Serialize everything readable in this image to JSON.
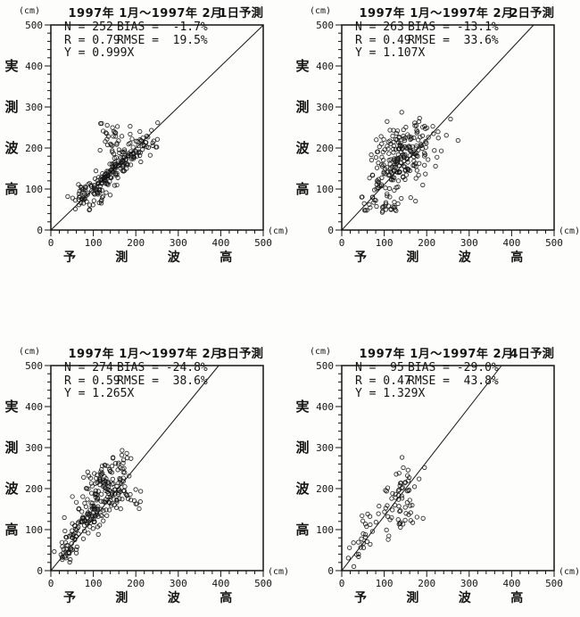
{
  "page": {
    "background": "#fdfdfc",
    "ink": "#141414",
    "description_period": "1997年 1月～1997年 2月"
  },
  "axes": {
    "xlabel": "予測波高",
    "xlabel_chars": [
      "予",
      "測",
      "波",
      "高"
    ],
    "ylabel": "実測波高",
    "ylabel_chars": [
      "実",
      "測",
      "波",
      "高"
    ],
    "unit": "(cm)",
    "major_ticks": [
      0,
      100,
      200,
      300,
      400,
      500
    ],
    "minor_step": 20,
    "xlim": [
      0,
      500
    ],
    "ylim": [
      0,
      500
    ]
  },
  "plots": [
    {
      "title": "1997年 1月～1997年 2月",
      "forecast_label": "1日予測",
      "stats_left": [
        "N = 252",
        "R = 0.79",
        "Y = 0.999X"
      ],
      "stats_right": [
        "BIAS =  -1.7%",
        "RMSE =  19.5%"
      ]
    },
    {
      "title": "1997年 1月～1997年 2月",
      "forecast_label": "2日予測",
      "stats_left": [
        "N = 263",
        "R = 0.49",
        "Y = 1.107X"
      ],
      "stats_right": [
        "BIAS = -13.1%",
        "RMSE =  33.6%"
      ]
    },
    {
      "title": "1997年 1月～1997年 2月",
      "forecast_label": "3日予測",
      "stats_left": [
        "N = 274",
        "R = 0.59",
        "Y = 1.265X"
      ],
      "stats_right": [
        "BIAS = -24.8%",
        "RMSE =  38.6%"
      ]
    },
    {
      "title": "1997年 1月～1997年 2月",
      "forecast_label": "4日予測",
      "stats_left": [
        "N =  95",
        "R = 0.47",
        "Y = 1.329X"
      ],
      "stats_right": [
        "BIAS = -29.0%",
        "RMSE =  43.8%"
      ]
    }
  ],
  "chart_data": [
    {
      "type": "scatter",
      "title": "1997年 1月～1997年 2月",
      "forecast": "1日予測",
      "xlabel": "予測波高 (cm)",
      "ylabel": "実測波高 (cm)",
      "xlim": [
        0,
        500
      ],
      "ylim": [
        0,
        500
      ],
      "grid": false,
      "marker": "open-circle",
      "regression_slope": 0.999,
      "stats": {
        "N": 252,
        "R": 0.79,
        "regression": "Y = 0.999X",
        "BIAS_pct": -1.7,
        "RMSE_pct": 19.5
      },
      "point_clusters": [
        {
          "n": 140,
          "cx": 135,
          "cy": 133,
          "sx": 38,
          "sy": 15,
          "k": 1.0
        },
        {
          "n": 45,
          "cx": 190,
          "cy": 183,
          "sx": 28,
          "sy": 22,
          "k": 0.9
        },
        {
          "n": 28,
          "cx": 143,
          "cy": 222,
          "sx": 11,
          "sy": 20,
          "k": 0.0
        },
        {
          "n": 20,
          "cx": 80,
          "cy": 100,
          "sx": 17,
          "sy": 13,
          "k": 0.7
        },
        {
          "n": 12,
          "cx": 115,
          "cy": 75,
          "sx": 18,
          "sy": 12,
          "k": 0.3
        },
        {
          "n": 7,
          "cx": 235,
          "cy": 205,
          "sx": 14,
          "sy": 18,
          "k": 0.5
        }
      ]
    },
    {
      "type": "scatter",
      "title": "1997年 1月～1997年 2月",
      "forecast": "2日予測",
      "xlabel": "予測波高 (cm)",
      "ylabel": "実測波高 (cm)",
      "xlim": [
        0,
        500
      ],
      "ylim": [
        0,
        500
      ],
      "grid": false,
      "marker": "open-circle",
      "regression_slope": 1.107,
      "stats": {
        "N": 263,
        "R": 0.49,
        "regression": "Y = 1.107X",
        "BIAS_pct": -13.1,
        "RMSE_pct": 33.6
      },
      "point_clusters": [
        {
          "n": 120,
          "cx": 140,
          "cy": 165,
          "sx": 38,
          "sy": 36,
          "k": 0.7
        },
        {
          "n": 60,
          "cx": 120,
          "cy": 210,
          "sx": 32,
          "sy": 28,
          "k": 0.3
        },
        {
          "n": 40,
          "cx": 180,
          "cy": 190,
          "sx": 28,
          "sy": 32,
          "k": 0.5
        },
        {
          "n": 25,
          "cx": 85,
          "cy": 95,
          "sx": 22,
          "sy": 18,
          "k": 0.8
        },
        {
          "n": 18,
          "cx": 115,
          "cy": 55,
          "sx": 14,
          "sy": 10,
          "k": 0.2
        }
      ]
    },
    {
      "type": "scatter",
      "title": "1997年 1月～1997年 2月",
      "forecast": "3日予測",
      "xlabel": "予測波高 (cm)",
      "ylabel": "実測波高 (cm)",
      "xlim": [
        0,
        500
      ],
      "ylim": [
        0,
        500
      ],
      "grid": false,
      "marker": "open-circle",
      "regression_slope": 1.265,
      "stats": {
        "N": 274,
        "R": 0.59,
        "regression": "Y = 1.265X",
        "BIAS_pct": -24.8,
        "RMSE_pct": 38.6
      },
      "point_clusters": [
        {
          "n": 105,
          "cx": 115,
          "cy": 195,
          "sx": 28,
          "sy": 33,
          "k": 0.8
        },
        {
          "n": 60,
          "cx": 100,
          "cy": 140,
          "sx": 24,
          "sy": 20,
          "k": 0.8
        },
        {
          "n": 45,
          "cx": 55,
          "cy": 85,
          "sx": 17,
          "sy": 23,
          "k": 1.0
        },
        {
          "n": 30,
          "cx": 148,
          "cy": 228,
          "sx": 22,
          "sy": 26,
          "k": 0.4
        },
        {
          "n": 22,
          "cx": 178,
          "cy": 178,
          "sx": 18,
          "sy": 24,
          "k": 0.2
        },
        {
          "n": 12,
          "cx": 38,
          "cy": 42,
          "sx": 9,
          "sy": 9,
          "k": 1.0
        }
      ]
    },
    {
      "type": "scatter",
      "title": "1997年 1月～1997年 2月",
      "forecast": "4日予測",
      "xlabel": "予測波高 (cm)",
      "ylabel": "実測波高 (cm)",
      "xlim": [
        0,
        500
      ],
      "ylim": [
        0,
        500
      ],
      "grid": false,
      "marker": "open-circle",
      "regression_slope": 1.329,
      "stats": {
        "N": 95,
        "R": 0.47,
        "regression": "Y = 1.329X",
        "BIAS_pct": -29.0,
        "RMSE_pct": 43.8
      },
      "point_clusters": [
        {
          "n": 40,
          "cx": 110,
          "cy": 150,
          "sx": 33,
          "sy": 33,
          "k": 0.8
        },
        {
          "n": 25,
          "cx": 140,
          "cy": 195,
          "sx": 22,
          "sy": 28,
          "k": 0.4
        },
        {
          "n": 15,
          "cx": 60,
          "cy": 85,
          "sx": 18,
          "sy": 18,
          "k": 0.8
        },
        {
          "n": 10,
          "cx": 158,
          "cy": 120,
          "sx": 22,
          "sy": 16,
          "k": 0.2
        },
        {
          "n": 5,
          "cx": 42,
          "cy": 45,
          "sx": 9,
          "sy": 7,
          "k": 1.0
        }
      ]
    }
  ]
}
